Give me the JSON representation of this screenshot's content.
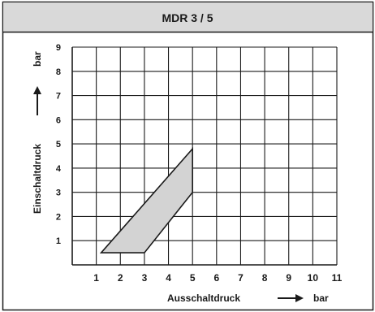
{
  "chart_data": {
    "type": "area",
    "title": "MDR 3 / 5",
    "xlabel": "Ausschaltdruck",
    "ylabel": "Einschaltdruck",
    "xunit": "bar",
    "yunit": "bar",
    "xlim": [
      0,
      11
    ],
    "ylim": [
      0,
      9
    ],
    "xticks": [
      1,
      2,
      3,
      4,
      5,
      6,
      7,
      8,
      9,
      10,
      11
    ],
    "yticks": [
      1,
      2,
      3,
      4,
      5,
      6,
      7,
      8,
      9
    ],
    "grid": true,
    "region": {
      "points": [
        {
          "x": 1.2,
          "y": 0.5
        },
        {
          "x": 3.0,
          "y": 0.5
        },
        {
          "x": 5.0,
          "y": 3.0
        },
        {
          "x": 5.0,
          "y": 4.8
        }
      ],
      "fill": "#d3d3d3",
      "stroke": "#1a1a1a"
    },
    "colors": {
      "title_bar": "#d9d9d9",
      "grid": "#1a1a1a",
      "text": "#1a1a1a"
    }
  }
}
